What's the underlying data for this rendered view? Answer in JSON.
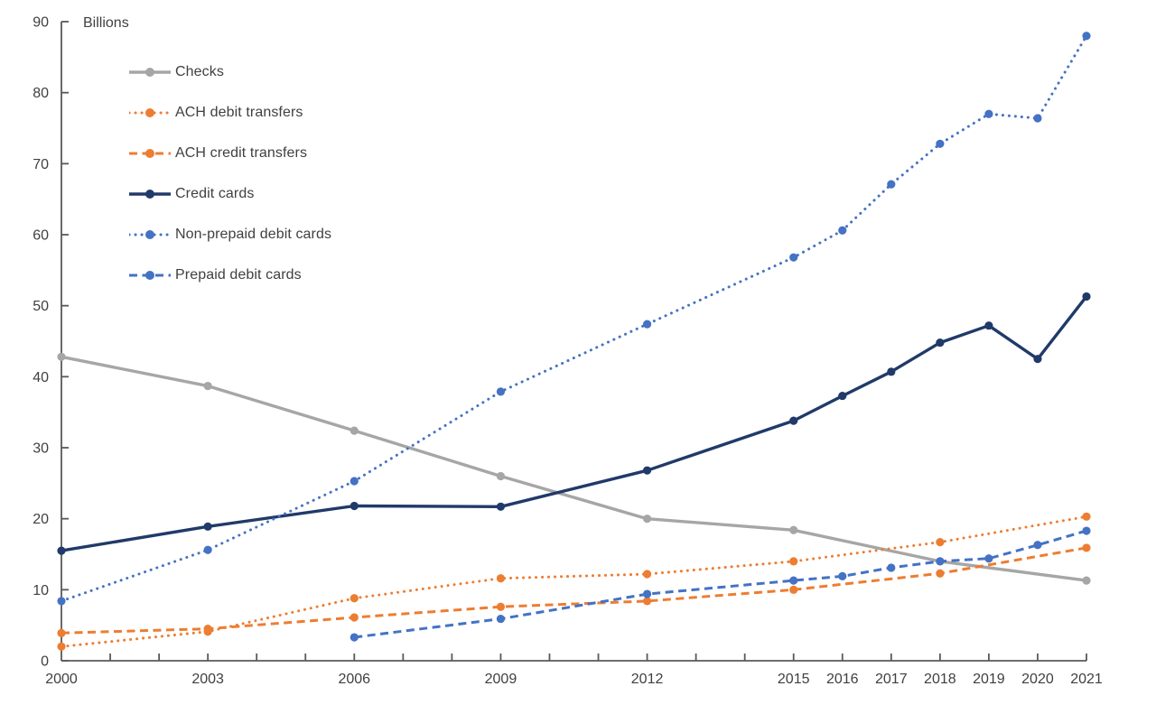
{
  "page": {
    "background": "#ffffff"
  },
  "chart_data": {
    "type": "line",
    "title": "",
    "ylabel": "Billions",
    "xlabel": "",
    "xlim": [
      2000,
      2021
    ],
    "ylim": [
      0,
      90
    ],
    "grid": false,
    "legend_position": "top-left",
    "axis_color": "#595959",
    "label_color": "#404040",
    "y_ticks": [
      0,
      10,
      20,
      30,
      40,
      50,
      60,
      70,
      80,
      90
    ],
    "x_ticks": [
      2000,
      2003,
      2006,
      2009,
      2012,
      2015,
      2016,
      2017,
      2018,
      2019,
      2020,
      2021
    ],
    "x_minor_ticks_every_year": true,
    "series": [
      {
        "name": "Checks",
        "color": "#A6A6A6",
        "line_style": "solid",
        "points": [
          [
            2000,
            42.8
          ],
          [
            2003,
            38.7
          ],
          [
            2006,
            32.4
          ],
          [
            2009,
            26.0
          ],
          [
            2012,
            20.0
          ],
          [
            2015,
            18.4
          ],
          [
            2018,
            14.0
          ],
          [
            2021,
            11.3
          ]
        ]
      },
      {
        "name": "ACH debit transfers",
        "color": "#ED7D31",
        "line_style": "dotted",
        "points": [
          [
            2000,
            2.0
          ],
          [
            2003,
            4.1
          ],
          [
            2006,
            8.8
          ],
          [
            2009,
            11.6
          ],
          [
            2012,
            12.2
          ],
          [
            2015,
            14.0
          ],
          [
            2018,
            16.7
          ],
          [
            2021,
            20.3
          ]
        ]
      },
      {
        "name": "ACH credit transfers",
        "color": "#ED7D31",
        "line_style": "dashed",
        "points": [
          [
            2000,
            3.9
          ],
          [
            2003,
            4.5
          ],
          [
            2006,
            6.1
          ],
          [
            2009,
            7.6
          ],
          [
            2012,
            8.4
          ],
          [
            2015,
            10.0
          ],
          [
            2018,
            12.3
          ],
          [
            2021,
            15.9
          ]
        ]
      },
      {
        "name": "Credit cards",
        "color": "#203A69",
        "line_style": "solid",
        "points": [
          [
            2000,
            15.5
          ],
          [
            2003,
            18.9
          ],
          [
            2006,
            21.8
          ],
          [
            2009,
            21.7
          ],
          [
            2012,
            26.8
          ],
          [
            2015,
            33.8
          ],
          [
            2016,
            37.3
          ],
          [
            2017,
            40.7
          ],
          [
            2018,
            44.8
          ],
          [
            2019,
            47.2
          ],
          [
            2020,
            42.5
          ],
          [
            2021,
            51.3
          ]
        ]
      },
      {
        "name": "Non-prepaid debit cards",
        "color": "#4472C4",
        "line_style": "dotted",
        "points": [
          [
            2000,
            8.4
          ],
          [
            2003,
            15.6
          ],
          [
            2006,
            25.3
          ],
          [
            2009,
            37.9
          ],
          [
            2012,
            47.4
          ],
          [
            2015,
            56.8
          ],
          [
            2016,
            60.6
          ],
          [
            2017,
            67.1
          ],
          [
            2018,
            72.8
          ],
          [
            2019,
            77.0
          ],
          [
            2020,
            76.4
          ],
          [
            2021,
            88.0
          ]
        ]
      },
      {
        "name": "Prepaid debit cards",
        "color": "#4472C4",
        "line_style": "dashed",
        "points": [
          [
            2006,
            3.3
          ],
          [
            2009,
            5.9
          ],
          [
            2012,
            9.4
          ],
          [
            2015,
            11.3
          ],
          [
            2016,
            11.9
          ],
          [
            2017,
            13.1
          ],
          [
            2018,
            14.0
          ],
          [
            2019,
            14.4
          ],
          [
            2020,
            16.3
          ],
          [
            2021,
            18.3
          ]
        ]
      }
    ]
  }
}
